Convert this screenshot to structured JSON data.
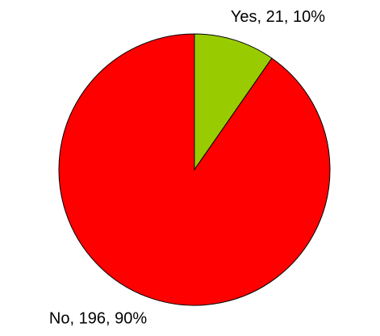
{
  "chart_data": {
    "type": "pie",
    "values": [
      21,
      196
    ],
    "value_labels": [
      "Yes, 21, 10%",
      "No, 196, 90%"
    ],
    "colors": [
      "#99cc00",
      "#ff0000"
    ]
  }
}
